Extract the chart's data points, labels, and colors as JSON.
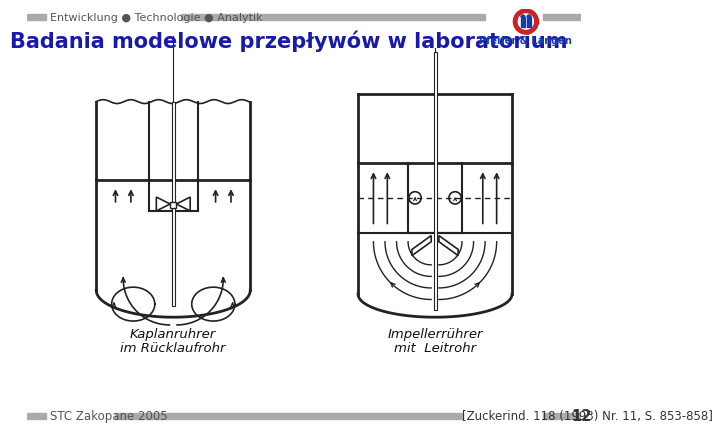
{
  "title": "Badania modelowe przepływów w laboratorium",
  "title_color": "#1a1aaa",
  "title_fontsize": 15,
  "header_text": "Entwicklung ● Technologie ● Analytik",
  "header_fontsize": 8,
  "header_bar_color": "#aaaaaa",
  "footer_left": "STC Zakopane 2005",
  "footer_right": "[Zuckerind. 118 (1993) Nr. 11, S. 853-858]",
  "footer_number": "12",
  "footer_fontsize": 8.5,
  "bg_color": "#ffffff",
  "label_left_line1": "Kaplanruhrer",
  "label_left_line2": "im Rücklaufrohr",
  "label_right_line1": "Impellerrührer",
  "label_right_line2": "mit  Leitrohr",
  "label_fontsize": 9.5,
  "diagram_line_color": "#222222",
  "logo_text": "Pfeifer & Langen",
  "logo_text_color": "#1a3aaa",
  "logo_ring_outer": "#cc2222",
  "logo_ring_inner": "#1a3aaa"
}
